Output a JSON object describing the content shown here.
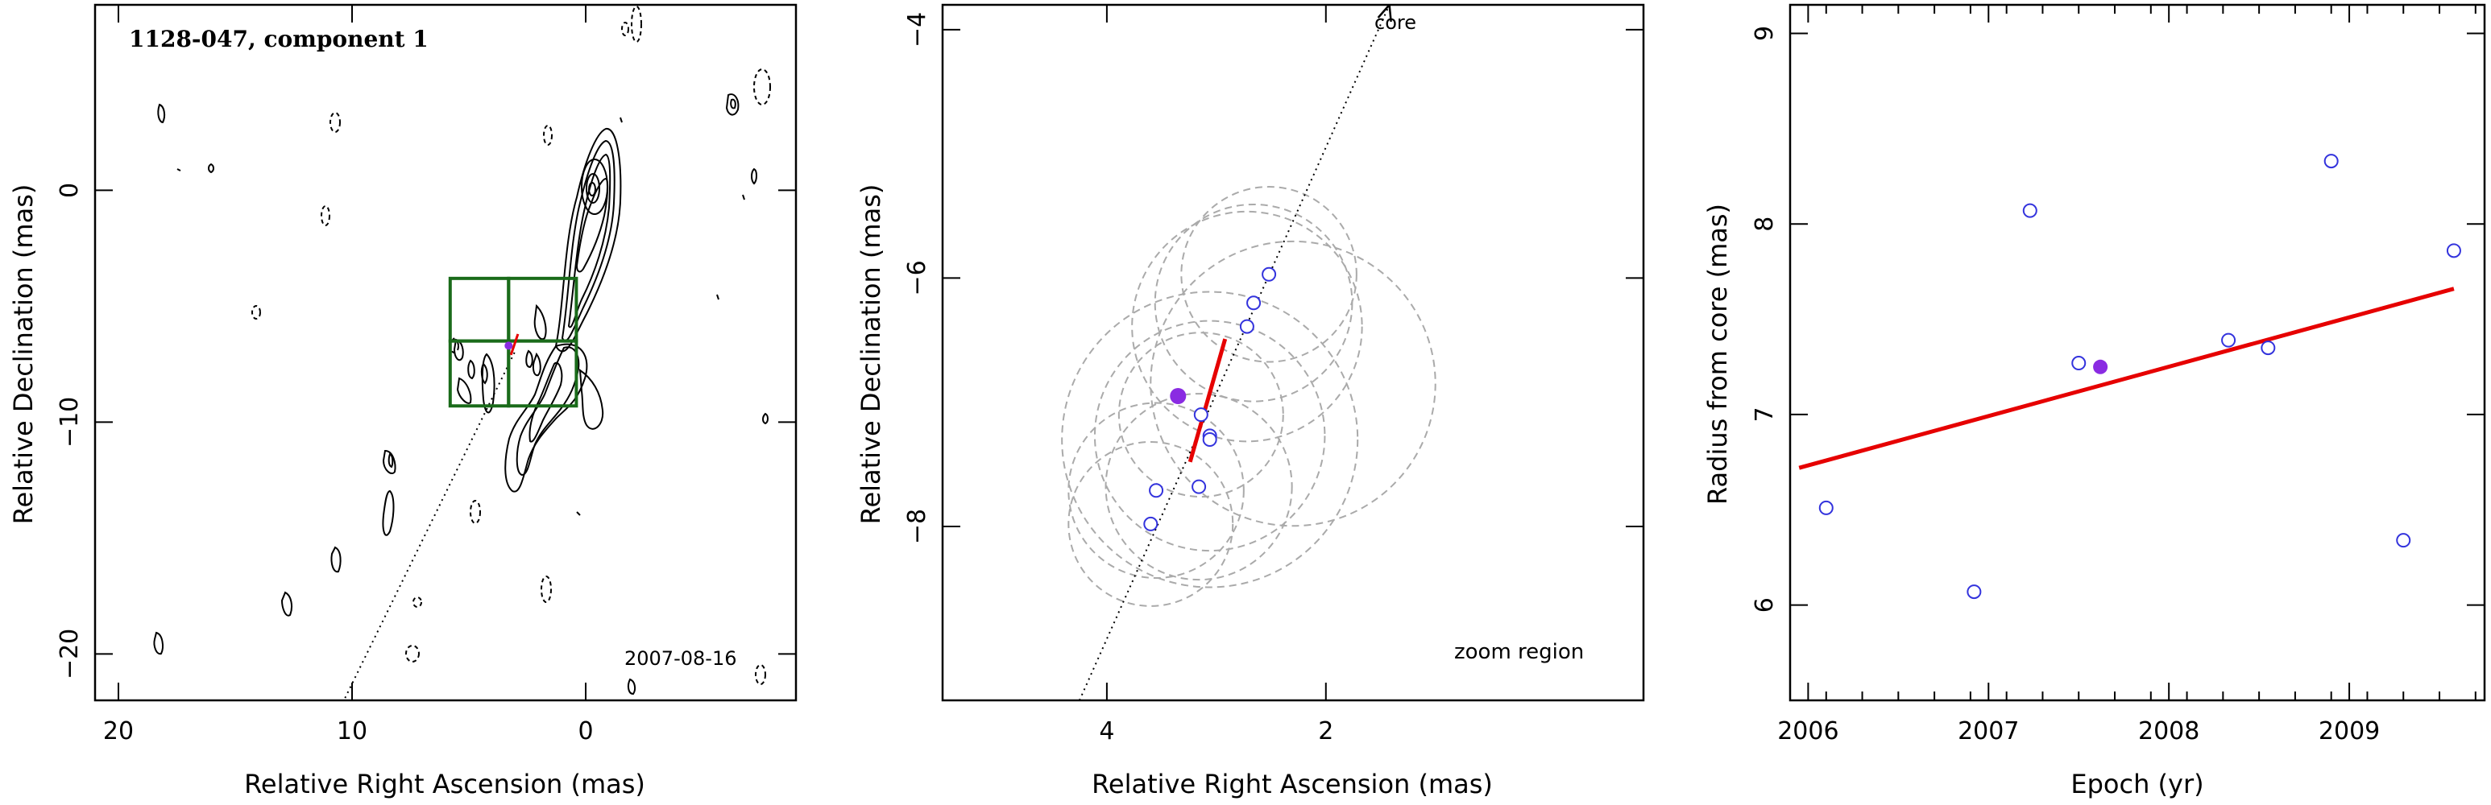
{
  "chart_data": [
    {
      "type": "scatter",
      "panel": "map",
      "title": "1128-047, component 1",
      "date_label": "2007-08-16",
      "xlabel": "Relative Right Ascension (mas)",
      "ylabel": "Relative Declination (mas)",
      "xlim": [
        21,
        -9
      ],
      "ylim": [
        -22,
        8
      ],
      "xticks": [
        20,
        10,
        0
      ],
      "yticks": [
        0,
        -10,
        -20
      ],
      "jet_axis_direction": "toward core at upper right",
      "contours": "positive (solid) and negative (dashed) brightness contours; core at (0, 0), jet extends to lower left",
      "boxes": [
        {
          "x": [
            5.8,
            3.3
          ],
          "y": [
            -3.8,
            -6.5
          ]
        },
        {
          "x": [
            3.3,
            0.4
          ],
          "y": [
            -3.8,
            -6.5
          ]
        },
        {
          "x": [
            5.8,
            3.3
          ],
          "y": [
            -6.5,
            -9.3
          ]
        },
        {
          "x": [
            3.3,
            0.4
          ],
          "y": [
            -6.5,
            -9.3
          ]
        }
      ],
      "box_color": "#1a6b1a",
      "component": {
        "x": 3.3,
        "y": -6.7,
        "color": "#8a2be2"
      }
    },
    {
      "type": "scatter",
      "panel": "zoom",
      "annotation_core": "core",
      "annotation_zoom": "zoom region",
      "xlabel": "Relative Right Ascension (mas)",
      "ylabel": "Relative Declination (mas)",
      "xlim": [
        5.5,
        -0.9
      ],
      "ylim": [
        -9.4,
        -3.8
      ],
      "xticks": [
        4,
        2
      ],
      "yticks": [
        -4,
        -6,
        -8
      ],
      "points": [
        {
          "x": 3.6,
          "y": -7.98
        },
        {
          "x": 3.55,
          "y": -7.71
        },
        {
          "x": 3.16,
          "y": -7.68
        },
        {
          "x": 3.14,
          "y": -7.1
        },
        {
          "x": 3.06,
          "y": -7.27
        },
        {
          "x": 3.06,
          "y": -7.3
        },
        {
          "x": 2.72,
          "y": -6.39
        },
        {
          "x": 2.66,
          "y": -6.2
        },
        {
          "x": 2.52,
          "y": -5.97
        }
      ],
      "highlight": {
        "x": 3.35,
        "y": -6.95
      },
      "error_circles": [
        {
          "x": 3.6,
          "y": -7.98,
          "r": 0.75
        },
        {
          "x": 3.55,
          "y": -7.71,
          "r": 0.8
        },
        {
          "x": 3.16,
          "y": -7.68,
          "r": 0.85
        },
        {
          "x": 3.14,
          "y": -7.1,
          "r": 0.75
        },
        {
          "x": 3.06,
          "y": -7.27,
          "r": 1.05
        },
        {
          "x": 3.06,
          "y": -7.3,
          "r": 1.35
        },
        {
          "x": 2.72,
          "y": -6.39,
          "r": 1.05
        },
        {
          "x": 2.66,
          "y": -6.2,
          "r": 0.9
        },
        {
          "x": 2.52,
          "y": -5.97,
          "r": 0.8
        },
        {
          "x": 2.3,
          "y": -6.85,
          "r": 1.3
        }
      ],
      "fit_segment": [
        {
          "x": 3.24,
          "y": -7.48
        },
        {
          "x": 2.92,
          "y": -6.49
        }
      ],
      "jet_axis": [
        {
          "x": 4.25,
          "y": -9.4
        },
        {
          "x": 1.42,
          "y": -3.8
        }
      ],
      "colors": {
        "points": "#3333dd",
        "highlight": "#8a2be2",
        "fit": "#e60000",
        "circles": "#aaaaaa"
      }
    },
    {
      "type": "scatter",
      "panel": "radius_vs_epoch",
      "xlabel": "Epoch (yr)",
      "ylabel": "Radius from core (mas)",
      "xlim": [
        2005.9,
        2009.75
      ],
      "ylim": [
        5.5,
        9.15
      ],
      "xticks": [
        2006,
        2007,
        2008,
        2009
      ],
      "yticks": [
        6,
        7,
        8,
        9
      ],
      "points": [
        {
          "x": 2006.1,
          "y": 6.51
        },
        {
          "x": 2006.92,
          "y": 6.07
        },
        {
          "x": 2007.23,
          "y": 8.07
        },
        {
          "x": 2007.5,
          "y": 7.27
        },
        {
          "x": 2008.33,
          "y": 7.39
        },
        {
          "x": 2008.55,
          "y": 7.35
        },
        {
          "x": 2008.9,
          "y": 8.33
        },
        {
          "x": 2009.3,
          "y": 6.34
        },
        {
          "x": 2009.58,
          "y": 7.86
        }
      ],
      "highlight": {
        "x": 2007.62,
        "y": 7.25
      },
      "fit_line": [
        {
          "x": 2005.95,
          "y": 6.72
        },
        {
          "x": 2009.58,
          "y": 7.66
        }
      ],
      "colors": {
        "points": "#3333dd",
        "highlight": "#8a2be2",
        "fit": "#e60000"
      }
    }
  ]
}
